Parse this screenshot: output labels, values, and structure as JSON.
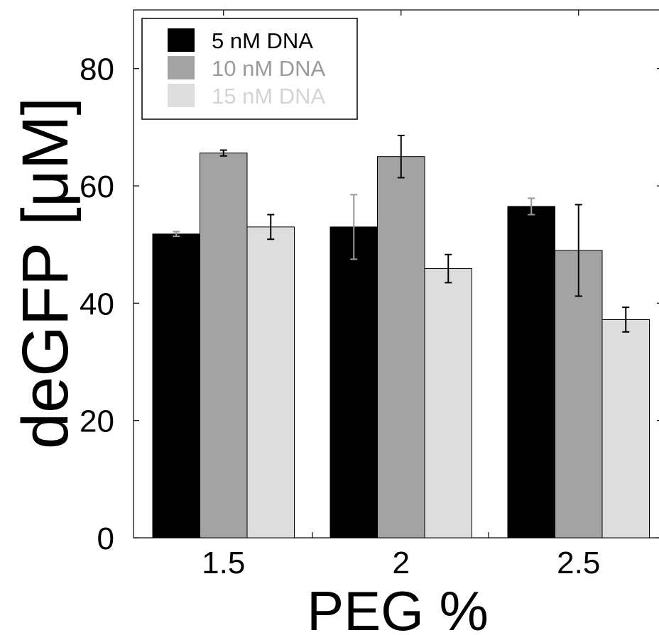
{
  "chart_data": {
    "type": "bar",
    "xlabel": "PEG %",
    "ylabel": "deGFP [μM]",
    "categories": [
      "1.5",
      "2",
      "2.5"
    ],
    "ylim": [
      0,
      90
    ],
    "yticks": [
      0,
      20,
      40,
      60,
      80
    ],
    "grid": false,
    "legend_position": "top-left",
    "series": [
      {
        "name": "5 nM DNA",
        "color": "#000000",
        "errorbar_color": "#999999",
        "legend_text_color": "#000000",
        "values": [
          51.8,
          53.0,
          56.5
        ],
        "errors": [
          0.4,
          5.5,
          1.4
        ]
      },
      {
        "name": "10 nM DNA",
        "color": "#a3a3a3",
        "errorbar_color": "#000000",
        "legend_text_color": "#9a9a9a",
        "values": [
          65.6,
          65.0,
          49.0
        ],
        "errors": [
          0.5,
          3.6,
          7.8
        ]
      },
      {
        "name": "15 nM DNA",
        "color": "#dcdddc",
        "errorbar_color": "#000000",
        "legend_text_color": "#d4d4d4",
        "values": [
          53.0,
          45.9,
          37.2
        ],
        "errors": [
          2.1,
          2.4,
          2.1
        ]
      }
    ]
  }
}
